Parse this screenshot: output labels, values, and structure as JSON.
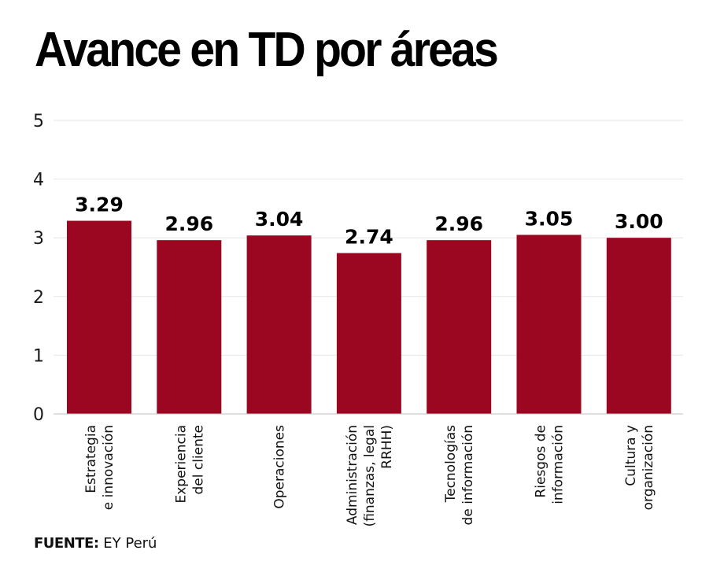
{
  "chart_data": {
    "type": "bar",
    "title": "Avance en TD por áreas",
    "xlabel": "",
    "ylabel": "",
    "ylim": [
      0,
      5
    ],
    "yticks": [
      0,
      1,
      2,
      3,
      4,
      5
    ],
    "grid": true,
    "legend": "none",
    "bar_color": "#9b0620",
    "categories": [
      [
        "Estrategia",
        "e innovación"
      ],
      [
        "Experiencia",
        "del cliente"
      ],
      [
        "Operaciones"
      ],
      [
        "Administración",
        "(finanzas, legal",
        "RRHH)"
      ],
      [
        "Tecnologías",
        "de información"
      ],
      [
        "Riesgos de",
        "información"
      ],
      [
        "Cultura y",
        "organización"
      ]
    ],
    "values": [
      3.29,
      2.96,
      3.04,
      2.74,
      2.96,
      3.05,
      3.0
    ],
    "value_labels": [
      "3.29",
      "2.96",
      "3.04",
      "2.74",
      "2.96",
      "3.05",
      "3.00"
    ]
  },
  "source": {
    "label": "FUENTE:",
    "text": "EY Perú"
  }
}
